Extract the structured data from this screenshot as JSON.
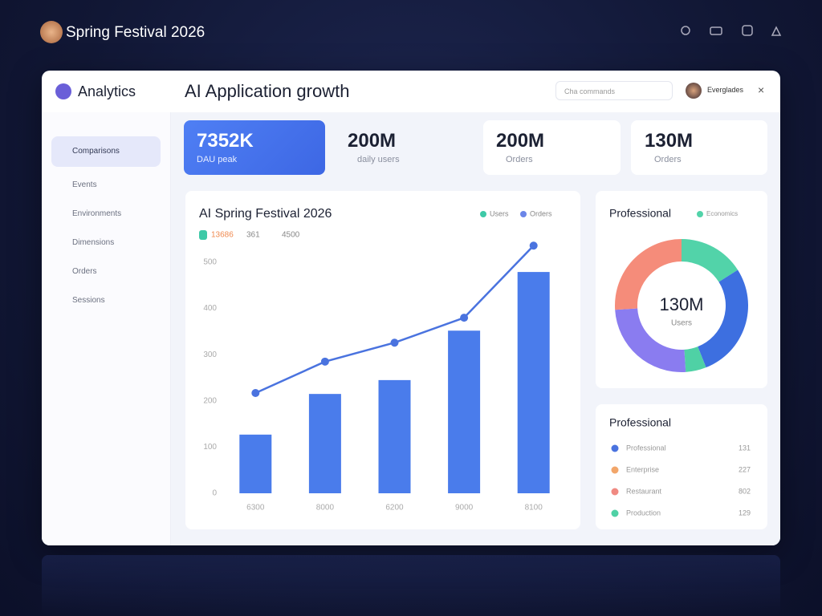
{
  "header": {
    "title": "Spring Festival 2026"
  },
  "panel": {
    "brand": "Analytics",
    "title": "AI Application growth",
    "search": "Cha commands",
    "user": "Everglades"
  },
  "sidebar": [
    "Comparisons",
    "Events",
    "Environments",
    "Dimensions",
    "Orders",
    "Sessions"
  ],
  "kpis": [
    {
      "value": "7352K",
      "label": "DAU peak"
    },
    {
      "value": "200M",
      "label": "daily users"
    },
    {
      "value": "200M",
      "label": "Orders"
    },
    {
      "value": "130M",
      "label": "Orders"
    }
  ],
  "chart_data": [
    {
      "type": "bar",
      "title": "AI Spring Festival 2026",
      "stats": [
        "13686",
        "361",
        "4500"
      ],
      "categories": [
        "6300",
        "8000",
        "6200",
        "9000",
        "8100"
      ],
      "series": [
        {
          "name": "Users",
          "type": "line",
          "color": "#4a73df",
          "legend_color": "#3ec9a7",
          "values": [
            217,
            285,
            326,
            380,
            536
          ]
        },
        {
          "name": "Orders",
          "type": "bar",
          "color": "#4a7ceb",
          "legend_color": "#6b86e8",
          "values": [
            127,
            215,
            245,
            352,
            479
          ]
        }
      ],
      "ylim": [
        0,
        550
      ],
      "yticks": [
        0,
        100,
        200,
        300,
        400,
        500
      ],
      "grid": false
    },
    {
      "type": "pie",
      "title": "Professional",
      "legend": "Economics",
      "center_value": "130M",
      "center_label": "Users",
      "values": [
        16,
        28,
        5,
        25,
        26
      ],
      "colors": [
        "#52d3a9",
        "#3d6fe0",
        "#4fd1a5",
        "#8a7cf0",
        "#f58c7a"
      ]
    }
  ],
  "list": {
    "title": "Professional",
    "items": [
      {
        "name": "Professional",
        "value": 131,
        "color": "#4a73df"
      },
      {
        "name": "Enterprise",
        "value": 227,
        "color": "#f2a66a"
      },
      {
        "name": "Restaurant",
        "value": 802,
        "color": "#f08a82"
      },
      {
        "name": "Production",
        "value": 129,
        "color": "#4fd1a5"
      }
    ]
  }
}
